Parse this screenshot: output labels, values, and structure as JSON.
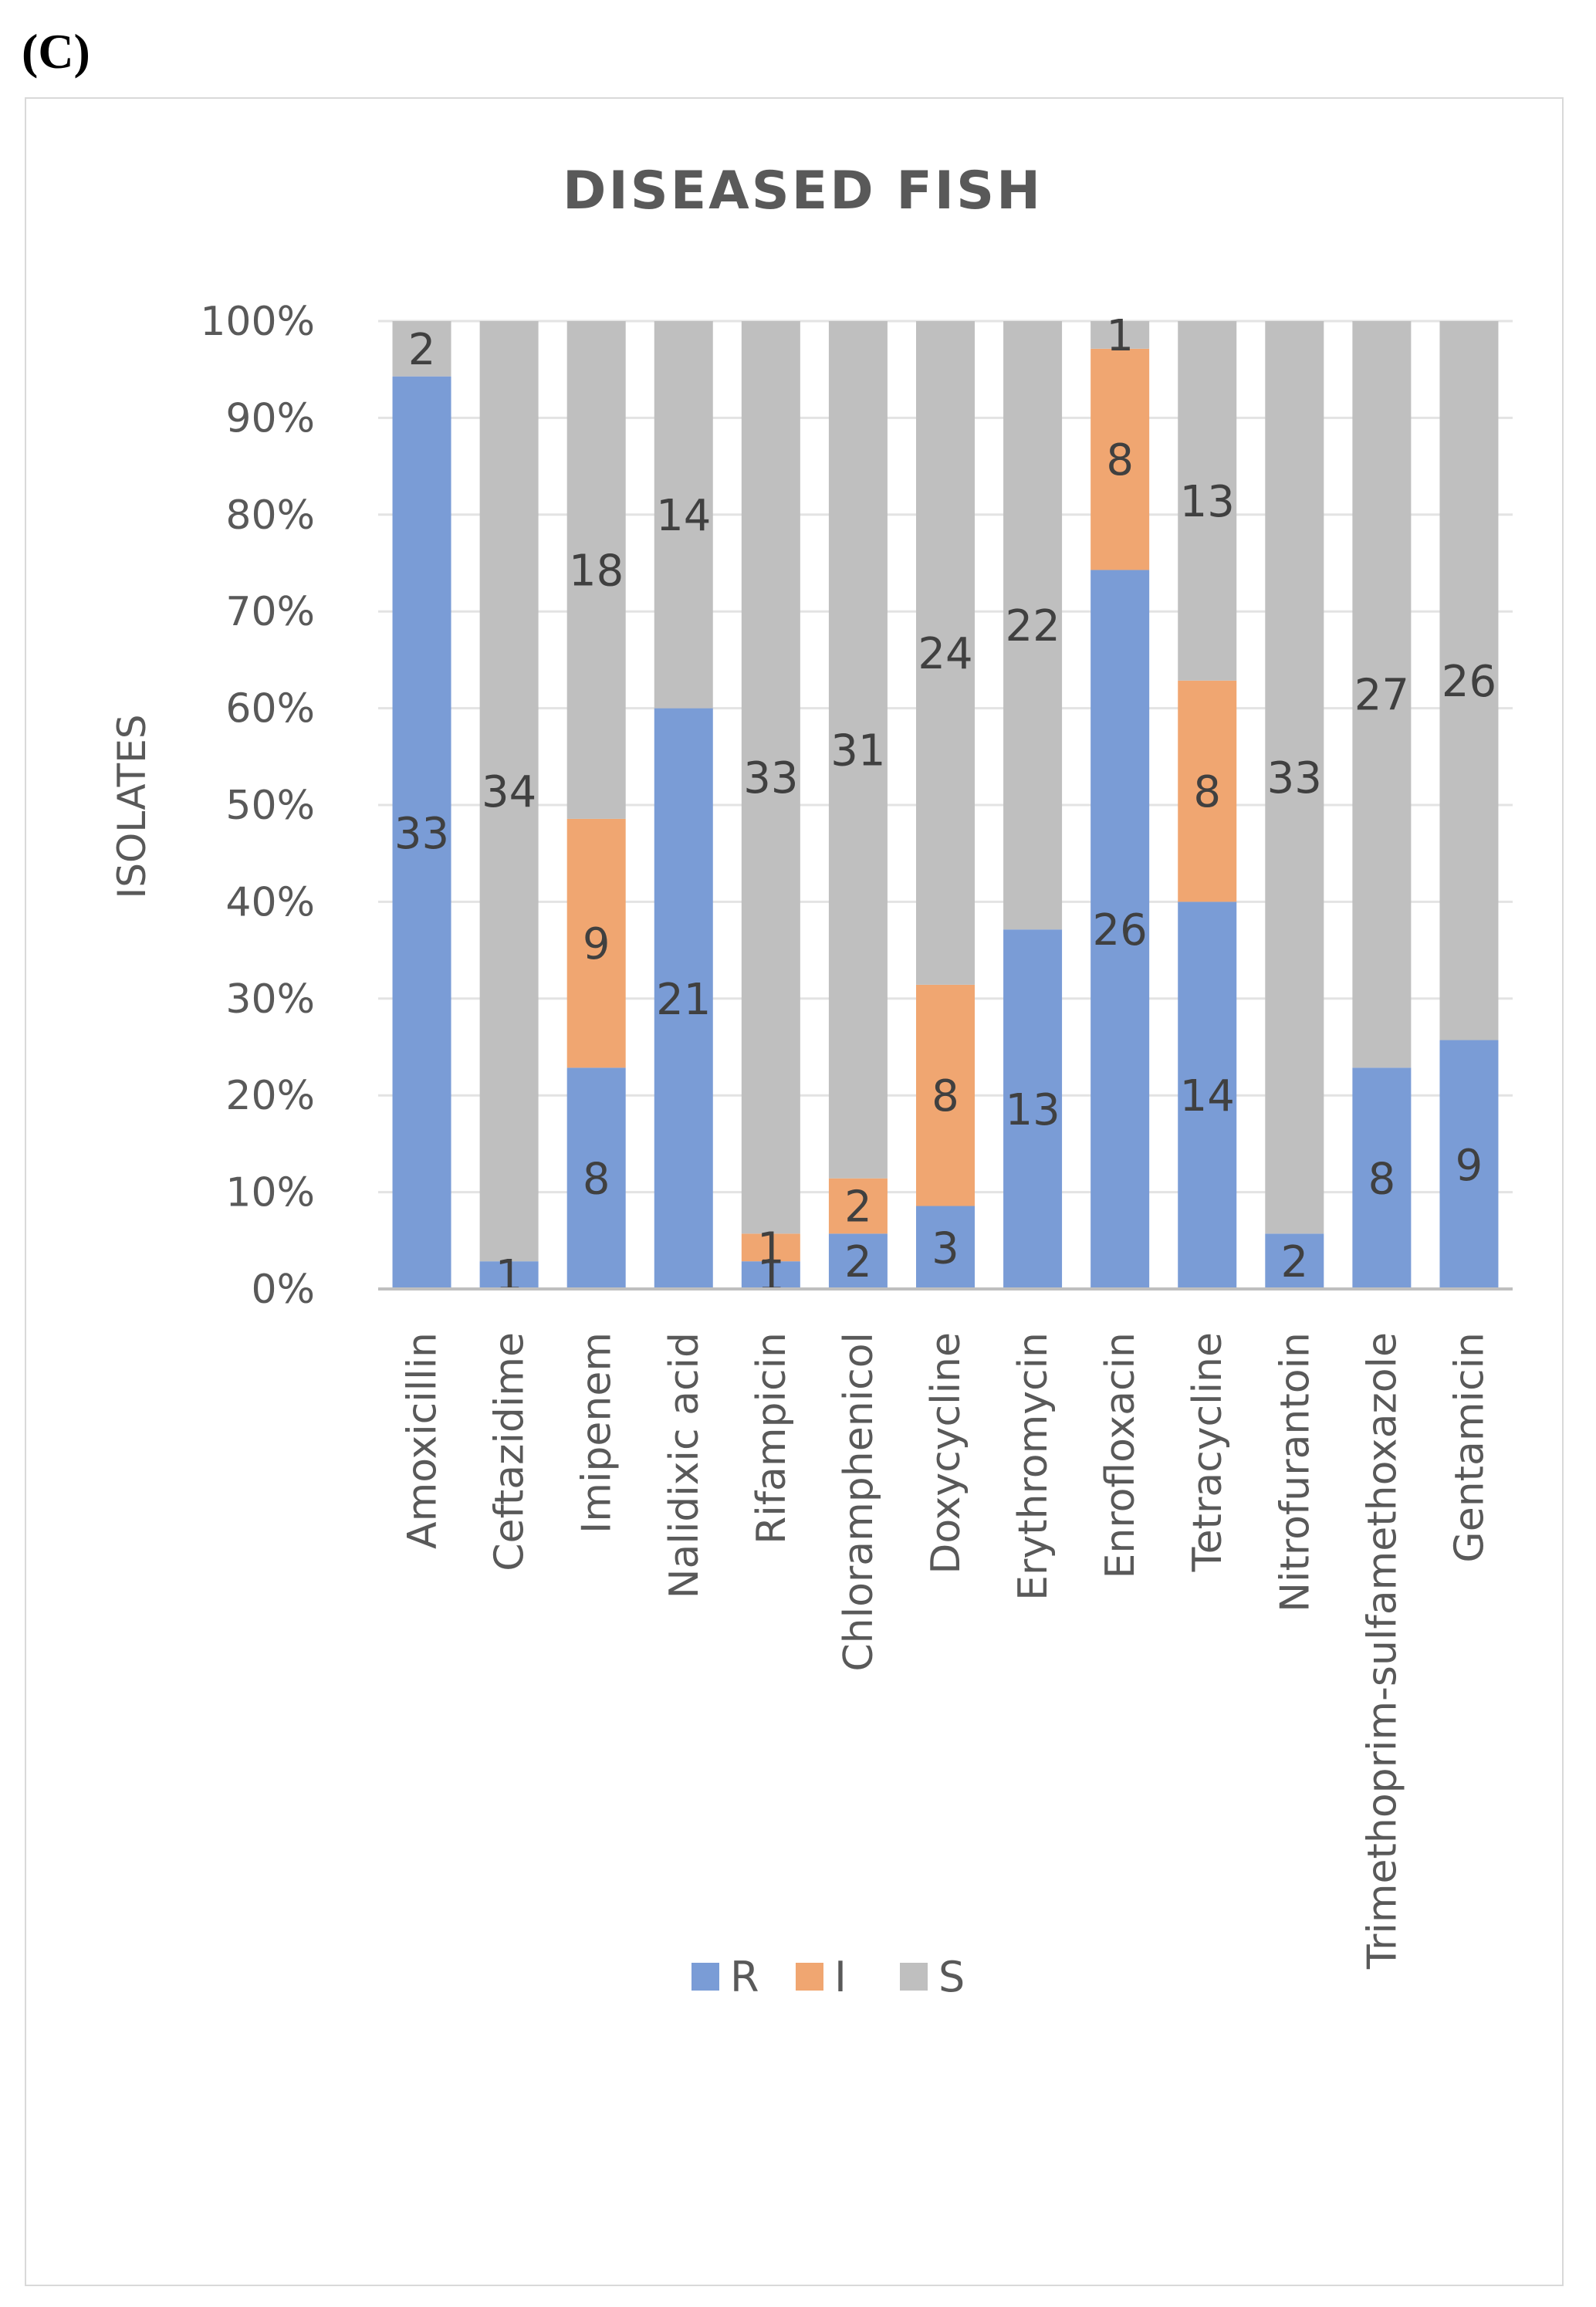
{
  "panel_label": "(C)",
  "chart_data": {
    "type": "bar",
    "stacked": "percent",
    "title": "DISEASED FISH",
    "xlabel": "",
    "ylabel": "ISOLATES",
    "ylim": [
      0,
      100
    ],
    "yticks": [
      "0%",
      "10%",
      "20%",
      "30%",
      "40%",
      "50%",
      "60%",
      "70%",
      "80%",
      "90%",
      "100%"
    ],
    "grid": true,
    "legend_position": "bottom",
    "categories": [
      "Amoxicillin",
      "Ceftazidime",
      "Imipenem",
      "Nalidixic acid",
      "Rifampicin",
      "Chloramphenicol",
      "Doxycycline",
      "Erythromycin",
      "Enrofloxacin",
      "Tetracycline",
      "Nitrofurantoin",
      "Trimethoprim-sulfamethoxazole",
      "Gentamicin"
    ],
    "series": [
      {
        "name": "R",
        "color": "#7a9cd6",
        "values": [
          33,
          1,
          8,
          21,
          1,
          2,
          3,
          13,
          26,
          14,
          2,
          8,
          9
        ]
      },
      {
        "name": "I",
        "color": "#f0a671",
        "values": [
          0,
          0,
          9,
          0,
          1,
          2,
          8,
          0,
          8,
          8,
          0,
          0,
          0
        ]
      },
      {
        "name": "S",
        "color": "#bfbfbf",
        "values": [
          2,
          34,
          18,
          14,
          33,
          31,
          24,
          22,
          1,
          13,
          33,
          27,
          26
        ]
      }
    ]
  }
}
